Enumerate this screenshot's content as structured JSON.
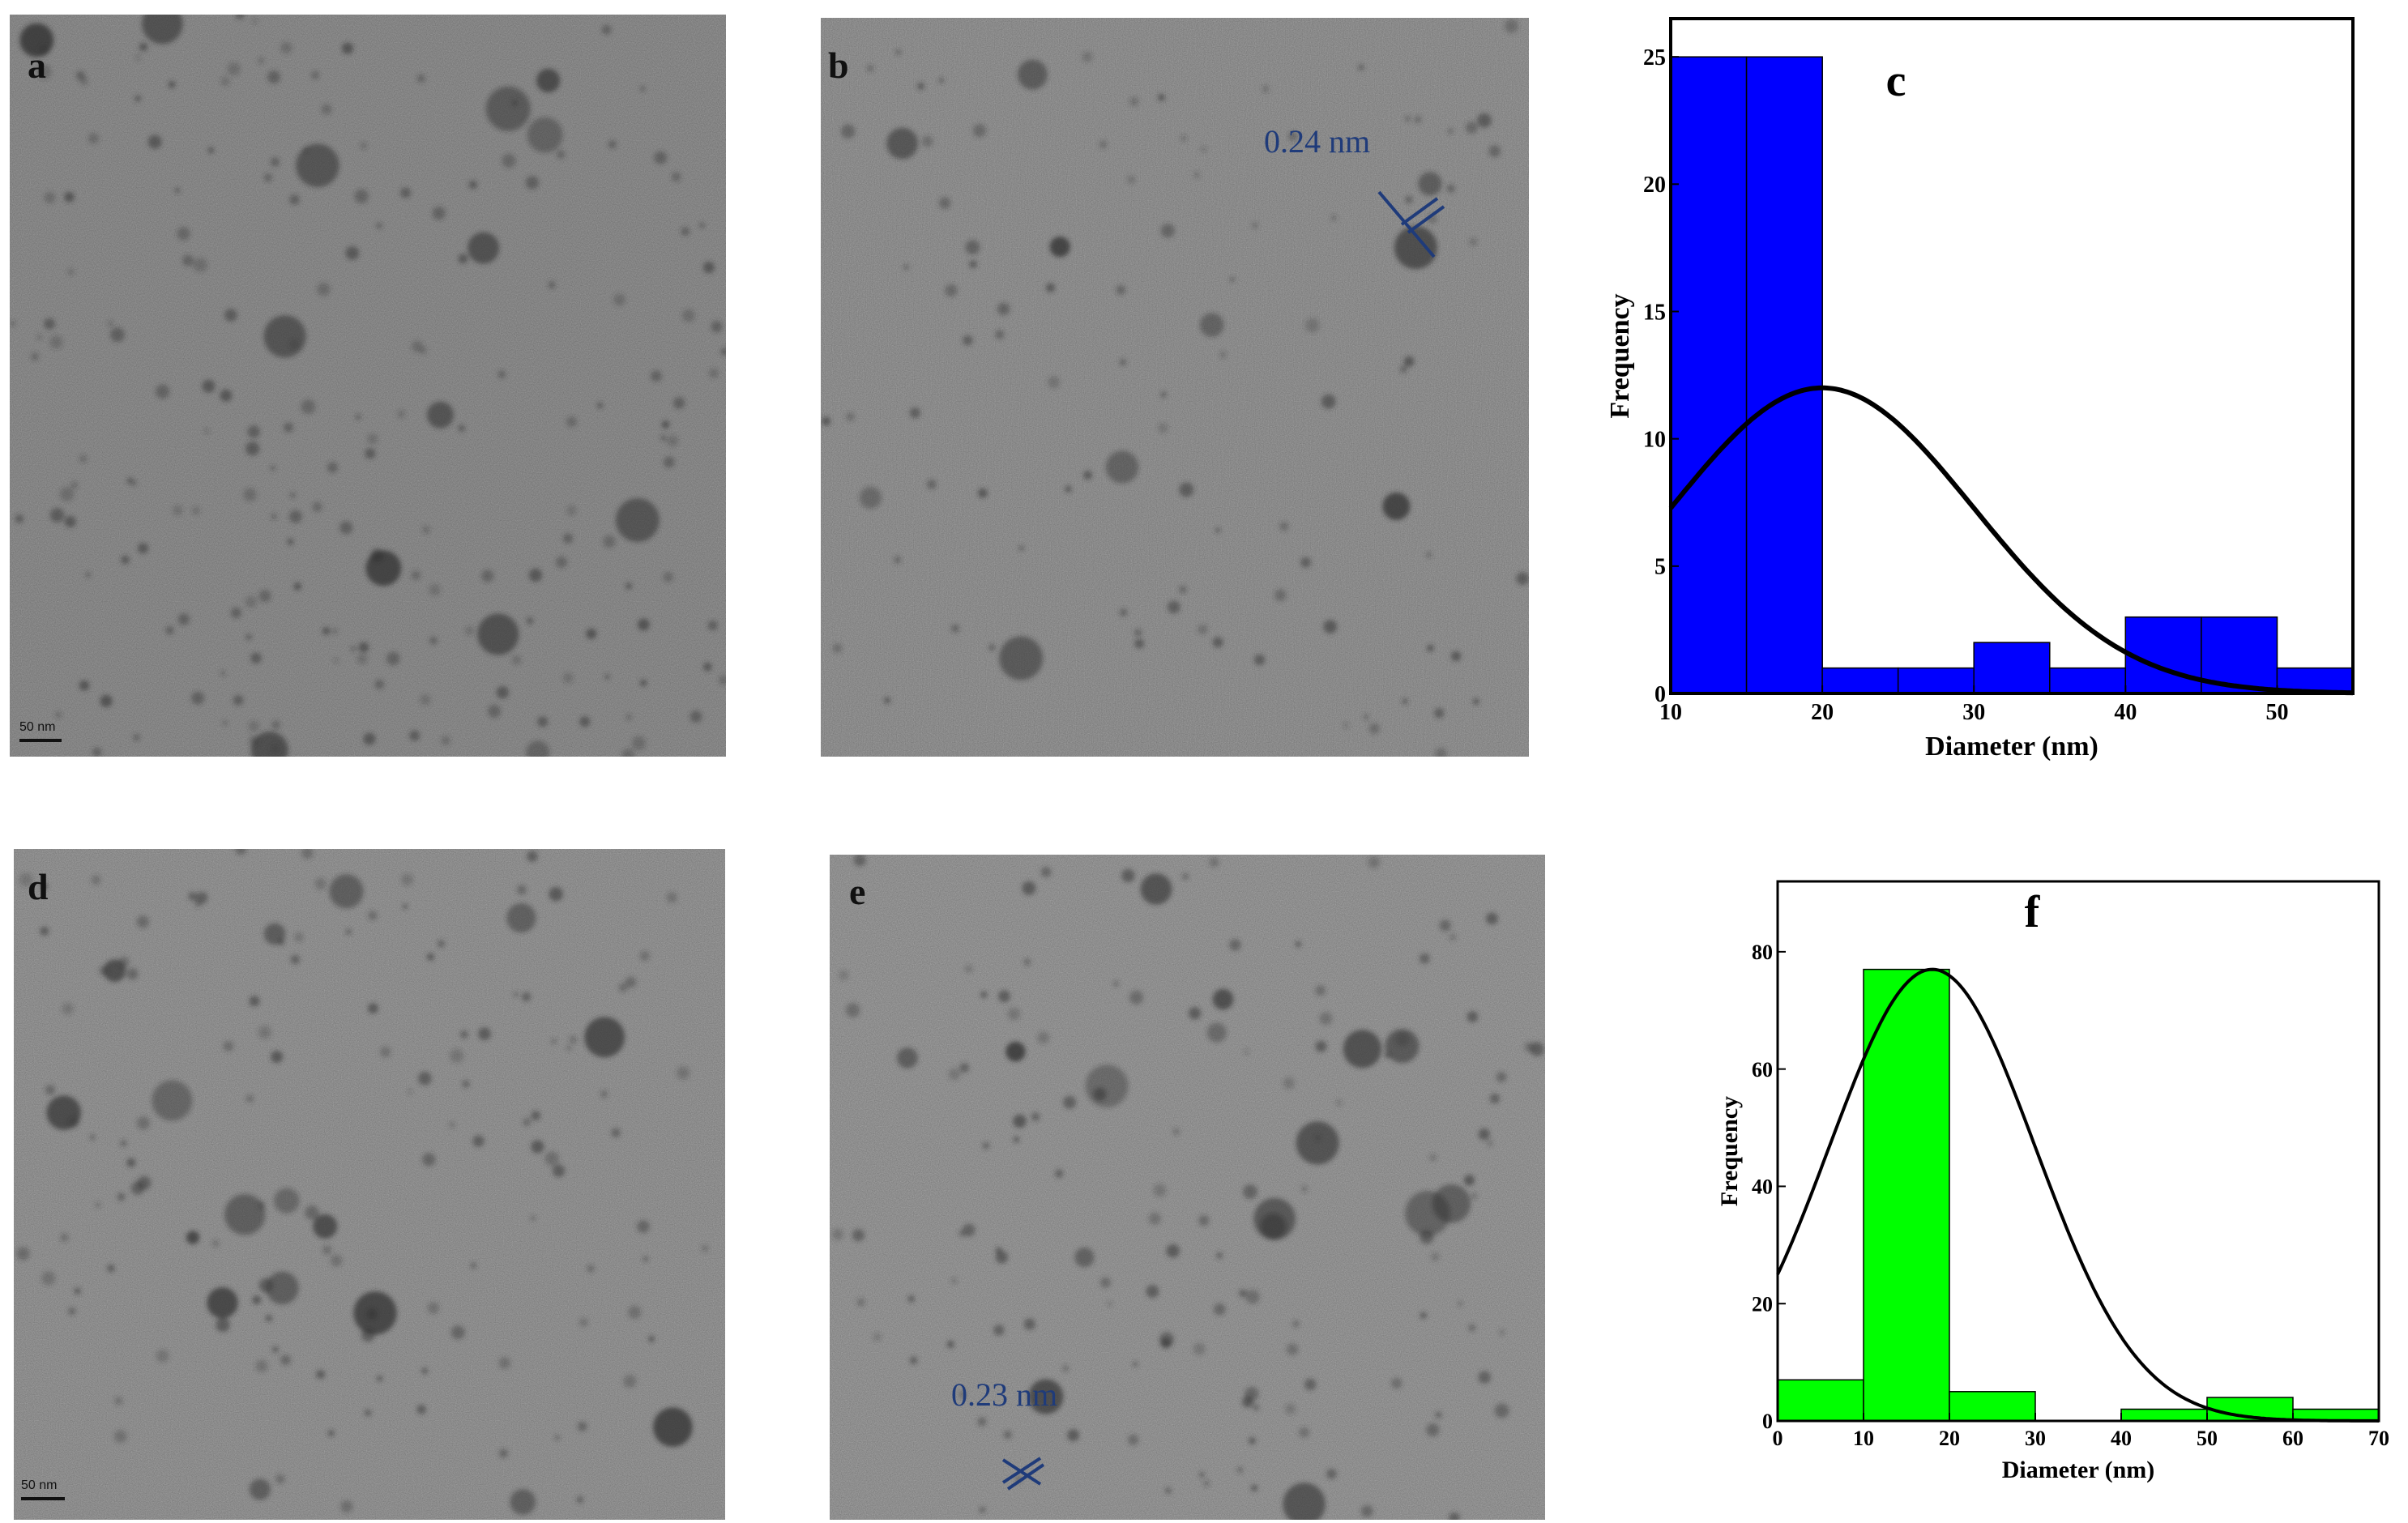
{
  "panels": {
    "a": {
      "letter": "a",
      "scale_bar": "50 nm"
    },
    "b": {
      "letter": "b",
      "lattice": "0.24 nm"
    },
    "d": {
      "letter": "d",
      "scale_bar": "50 nm"
    },
    "e": {
      "letter": "e",
      "lattice": "0.23 nm"
    }
  },
  "colors": {
    "hist_c_fill": "#0000ff",
    "hist_f_fill": "#00ff00",
    "curve": "#000000",
    "lattice_marker": "#1f3b7a"
  },
  "chart_data": [
    {
      "type": "bar",
      "panel_label": "c",
      "xlabel": "Diameter (nm)",
      "ylabel": "Frequency",
      "xlim": [
        10,
        55
      ],
      "ylim": [
        0,
        26.5
      ],
      "xticks": [
        10,
        20,
        30,
        40,
        50
      ],
      "yticks": [
        0,
        5,
        10,
        15,
        20,
        25
      ],
      "bin_width": 5,
      "bins": [
        {
          "x0": 10,
          "x1": 15,
          "count": 25
        },
        {
          "x0": 15,
          "x1": 20,
          "count": 25
        },
        {
          "x0": 20,
          "x1": 25,
          "count": 1
        },
        {
          "x0": 25,
          "x1": 30,
          "count": 1
        },
        {
          "x0": 30,
          "x1": 35,
          "count": 2
        },
        {
          "x0": 35,
          "x1": 40,
          "count": 1
        },
        {
          "x0": 40,
          "x1": 45,
          "count": 3
        },
        {
          "x0": 45,
          "x1": 50,
          "count": 3
        },
        {
          "x0": 50,
          "x1": 55,
          "count": 1
        }
      ],
      "fit": {
        "type": "gaussian",
        "peak_x": 20,
        "peak_y": 12,
        "sigma": 10
      },
      "grid": false,
      "legend": "none"
    },
    {
      "type": "bar",
      "panel_label": "f",
      "xlabel": "Diameter (nm)",
      "ylabel": "Frequency",
      "xlim": [
        0,
        70
      ],
      "ylim": [
        0,
        92
      ],
      "xticks": [
        0,
        10,
        20,
        30,
        40,
        50,
        60,
        70
      ],
      "yticks": [
        0,
        20,
        40,
        60,
        80
      ],
      "bin_width": 10,
      "bins": [
        {
          "x0": 0,
          "x1": 10,
          "count": 7
        },
        {
          "x0": 10,
          "x1": 20,
          "count": 77
        },
        {
          "x0": 20,
          "x1": 30,
          "count": 5
        },
        {
          "x0": 30,
          "x1": 40,
          "count": 0
        },
        {
          "x0": 40,
          "x1": 50,
          "count": 2
        },
        {
          "x0": 50,
          "x1": 60,
          "count": 4
        },
        {
          "x0": 60,
          "x1": 70,
          "count": 2
        }
      ],
      "fit": {
        "type": "gaussian",
        "peak_x": 18,
        "peak_y": 77,
        "sigma": 12
      },
      "grid": false,
      "legend": "none"
    }
  ]
}
